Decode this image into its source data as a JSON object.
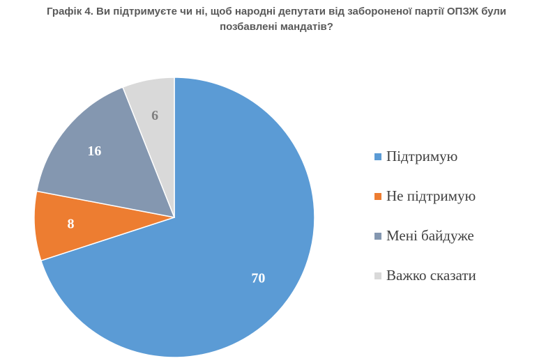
{
  "title": {
    "line1": "Графік 4. Ви підтримуєте чи ні, щоб народні депутати від забороненої партії ОПЗЖ були",
    "line2": "позбавлені мандатів?"
  },
  "chart_data": {
    "type": "pie",
    "title": "Графік 4. Ви підтримуєте чи ні, щоб народні депутати від забороненої партії ОПЗЖ були позбавлені мандатів?",
    "legend_position": "right",
    "slices": [
      {
        "label": "Підтримую",
        "value": 70,
        "color": "#5b9bd5",
        "label_color": "#ffffff"
      },
      {
        "label": "Не підтримую",
        "value": 8,
        "color": "#ed7d31",
        "label_color": "#ffffff"
      },
      {
        "label": "Мені байдуже",
        "value": 16,
        "color": "#8497b0",
        "label_color": "#ffffff"
      },
      {
        "label": "Важко сказати",
        "value": 6,
        "color": "#d9d9d9",
        "label_color": "#7f7f7f"
      }
    ]
  },
  "legend": {
    "items": [
      {
        "label": "Підтримую",
        "color": "#5b9bd5"
      },
      {
        "label": "Не підтримую",
        "color": "#ed7d31"
      },
      {
        "label": "Мені байдуже",
        "color": "#8497b0"
      },
      {
        "label": "Важко сказати",
        "color": "#d9d9d9"
      }
    ]
  }
}
